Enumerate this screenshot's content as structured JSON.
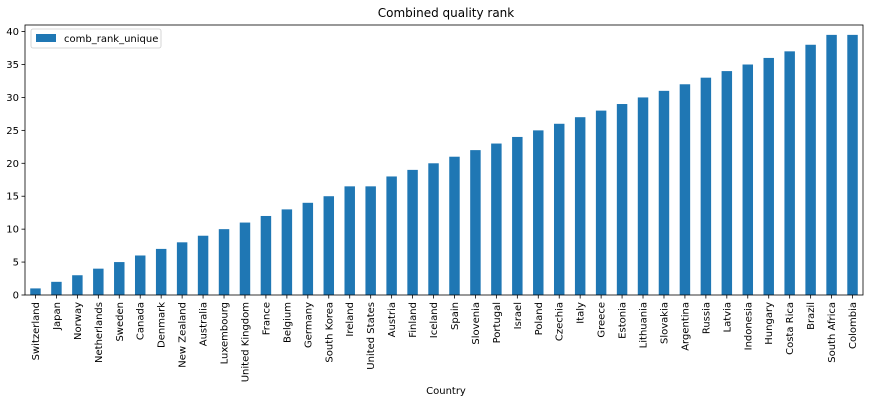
{
  "chart_data": {
    "type": "bar",
    "title": "Combined quality rank",
    "xlabel": "Country",
    "ylabel": "",
    "ylim": [
      0,
      41
    ],
    "yticks": [
      0,
      5,
      10,
      15,
      20,
      25,
      30,
      35,
      40
    ],
    "legend": "top-left",
    "grid": false,
    "bar_color": "#1f77b4",
    "categories": [
      "Switzerland",
      "Japan",
      "Norway",
      "Netherlands",
      "Sweden",
      "Canada",
      "Denmark",
      "New Zealand",
      "Australia",
      "Luxembourg",
      "United Kingdom",
      "France",
      "Belgium",
      "Germany",
      "South Korea",
      "Ireland",
      "United States",
      "Austria",
      "Finland",
      "Iceland",
      "Spain",
      "Slovenia",
      "Portugal",
      "Israel",
      "Poland",
      "Czechia",
      "Italy",
      "Greece",
      "Estonia",
      "Lithuania",
      "Slovakia",
      "Argentina",
      "Russia",
      "Latvia",
      "Indonesia",
      "Hungary",
      "Costa Rica",
      "Brazil",
      "South Africa",
      "Colombia"
    ],
    "series": [
      {
        "name": "comb_rank_unique",
        "values": [
          1,
          2,
          3,
          4,
          5,
          6,
          7,
          8,
          9,
          10,
          11,
          12,
          13,
          14,
          15,
          16.5,
          16.5,
          18,
          19,
          20,
          21,
          22,
          23,
          24,
          25,
          26,
          27,
          28,
          29,
          30,
          31,
          32,
          33,
          34,
          35,
          36,
          37,
          38,
          39.5,
          39.5
        ]
      }
    ]
  }
}
